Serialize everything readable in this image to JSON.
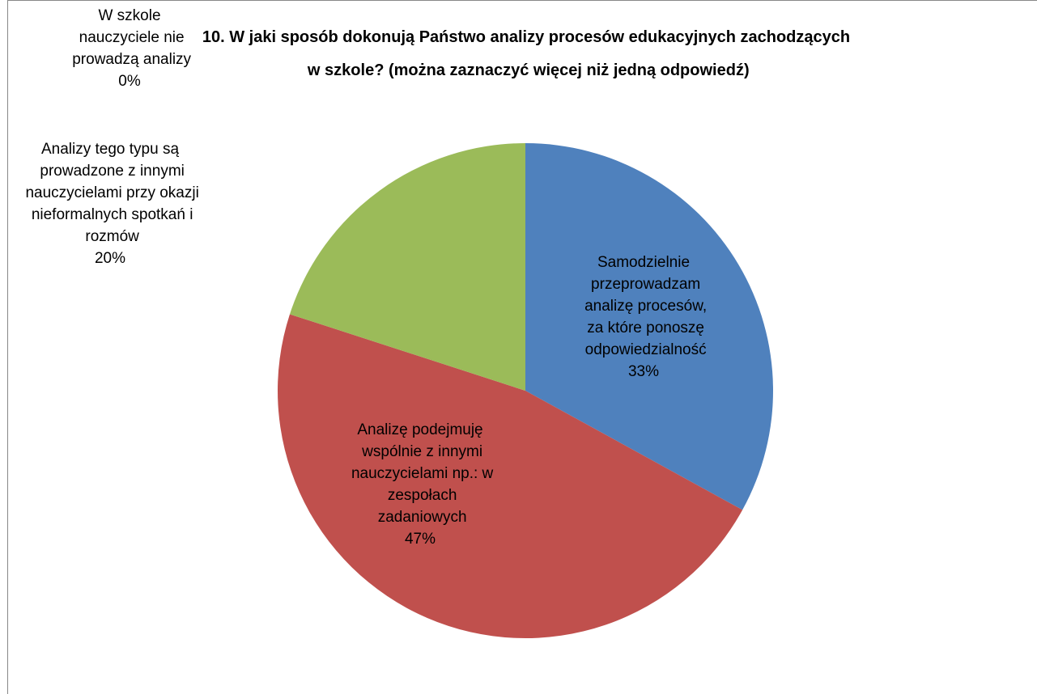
{
  "chart_data": {
    "type": "pie",
    "title": "10. W jaki sposób dokonują Państwo analizy procesów edukacyjnych zachodzących w szkole? (można zaznaczyć więcej niż jedną odpowiedź)",
    "categories": [
      "Samodzielnie przeprowadzam analizę procesów, za które ponoszę odpowiedzialność",
      "Analizę podejmuję wspólnie z innymi nauczycielami np.: w zespołach zadaniowych",
      "Analizy tego typu są prowadzone z innymi nauczycielami przy okazji nieformalnych spotkań i rozmów",
      "W szkole nauczyciele nie prowadzą analizy"
    ],
    "values": [
      33,
      47,
      20,
      0
    ],
    "value_labels": [
      "33%",
      "47%",
      "20%",
      "0%"
    ],
    "colors": [
      "#4f81bd",
      "#c0504d",
      "#9bbb59",
      "#8064a2"
    ]
  }
}
